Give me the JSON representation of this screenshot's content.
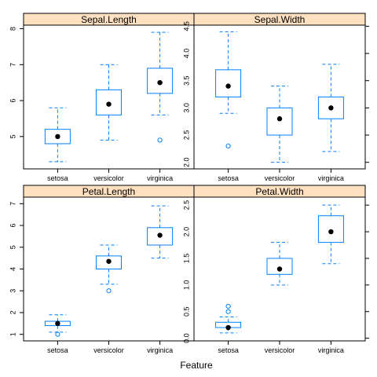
{
  "chart_data": {
    "type": "boxplot",
    "xlabel": "Feature",
    "categories": [
      "setosa",
      "versicolor",
      "virginica"
    ],
    "colors": {
      "strip": "#ffe0c0",
      "box": "#0080ff",
      "median_dot": "#000000",
      "outlier": "#0080ff",
      "frame": "#000000"
    },
    "panels": [
      {
        "name": "Sepal.Length",
        "ylim": [
          4.1,
          8.1
        ],
        "yticks": [
          5,
          6,
          7,
          8
        ],
        "stats": [
          {
            "category": "setosa",
            "lower_whisker": 4.3,
            "q1": 4.8,
            "median": 5.0,
            "q3": 5.2,
            "upper_whisker": 5.8,
            "outliers": []
          },
          {
            "category": "versicolor",
            "lower_whisker": 4.9,
            "q1": 5.6,
            "median": 5.9,
            "q3": 6.3,
            "upper_whisker": 7.0,
            "outliers": []
          },
          {
            "category": "virginica",
            "lower_whisker": 5.6,
            "q1": 6.2,
            "median": 6.5,
            "q3": 6.9,
            "upper_whisker": 7.9,
            "outliers": [
              4.9
            ]
          }
        ]
      },
      {
        "name": "Sepal.Width",
        "ylim": [
          1.88,
          4.52
        ],
        "yticks": [
          2.0,
          2.5,
          3.0,
          3.5,
          4.0,
          4.5
        ],
        "stats": [
          {
            "category": "setosa",
            "lower_whisker": 2.9,
            "q1": 3.2,
            "median": 3.4,
            "q3": 3.7,
            "upper_whisker": 4.4,
            "outliers": [
              2.3
            ]
          },
          {
            "category": "versicolor",
            "lower_whisker": 2.0,
            "q1": 2.5,
            "median": 2.8,
            "q3": 3.0,
            "upper_whisker": 3.4,
            "outliers": []
          },
          {
            "category": "virginica",
            "lower_whisker": 2.2,
            "q1": 2.8,
            "median": 3.0,
            "q3": 3.2,
            "upper_whisker": 3.8,
            "outliers": []
          }
        ]
      },
      {
        "name": "Petal.Length",
        "ylim": [
          0.7,
          7.3
        ],
        "yticks": [
          1,
          2,
          3,
          4,
          5,
          6,
          7
        ],
        "stats": [
          {
            "category": "setosa",
            "lower_whisker": 1.1,
            "q1": 1.4,
            "median": 1.5,
            "q3": 1.6,
            "upper_whisker": 1.9,
            "outliers": [
              1.0
            ]
          },
          {
            "category": "versicolor",
            "lower_whisker": 3.3,
            "q1": 4.0,
            "median": 4.35,
            "q3": 4.6,
            "upper_whisker": 5.1,
            "outliers": [
              3.0
            ]
          },
          {
            "category": "virginica",
            "lower_whisker": 4.5,
            "q1": 5.1,
            "median": 5.55,
            "q3": 5.9,
            "upper_whisker": 6.9,
            "outliers": []
          }
        ]
      },
      {
        "name": "Petal.Width",
        "ylim": [
          -0.05,
          2.65
        ],
        "yticks": [
          0.0,
          0.5,
          1.0,
          1.5,
          2.0,
          2.5
        ],
        "stats": [
          {
            "category": "setosa",
            "lower_whisker": 0.1,
            "q1": 0.2,
            "median": 0.2,
            "q3": 0.3,
            "upper_whisker": 0.4,
            "outliers": [
              0.5,
              0.6
            ]
          },
          {
            "category": "versicolor",
            "lower_whisker": 1.0,
            "q1": 1.2,
            "median": 1.3,
            "q3": 1.5,
            "upper_whisker": 1.8,
            "outliers": []
          },
          {
            "category": "virginica",
            "lower_whisker": 1.4,
            "q1": 1.8,
            "median": 2.0,
            "q3": 2.3,
            "upper_whisker": 2.5,
            "outliers": []
          }
        ]
      }
    ]
  }
}
